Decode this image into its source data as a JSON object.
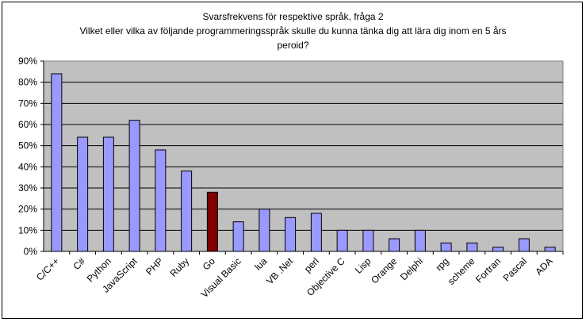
{
  "chart_data": {
    "type": "bar",
    "title": [
      "Svarsfrekvens för respektive språk, fråga 2",
      "Vilket eller vilka av följande programmeringsspråk skulle du kunna tänka dig att lära dig inom en 5 års",
      "peroid?"
    ],
    "xlabel": "",
    "ylabel": "",
    "ylim": [
      0,
      0.9
    ],
    "y_tick_labels": [
      "0%",
      "10%",
      "20%",
      "30%",
      "40%",
      "50%",
      "60%",
      "70%",
      "80%",
      "90%"
    ],
    "categories": [
      "C/C++",
      "C#",
      "Python",
      "JavaScript",
      "PHP",
      "Ruby",
      "Go",
      "Visual Basic",
      "lua",
      "VB .Net",
      "perl",
      "Objective C",
      "Lisp",
      "Orange",
      "Delphi",
      "rpg",
      "scheme",
      "Fortran",
      "Pascal",
      "ADA"
    ],
    "values": [
      0.84,
      0.54,
      0.54,
      0.62,
      0.48,
      0.38,
      0.28,
      0.14,
      0.2,
      0.16,
      0.18,
      0.1,
      0.1,
      0.06,
      0.1,
      0.04,
      0.04,
      0.02,
      0.06,
      0.02
    ],
    "highlight_index": 6,
    "grid": true,
    "legend": "none",
    "colors": {
      "bar": "#9999ff",
      "highlight": "#800000",
      "plot_background": "#c0c0c0",
      "gridline": "#000000"
    }
  }
}
